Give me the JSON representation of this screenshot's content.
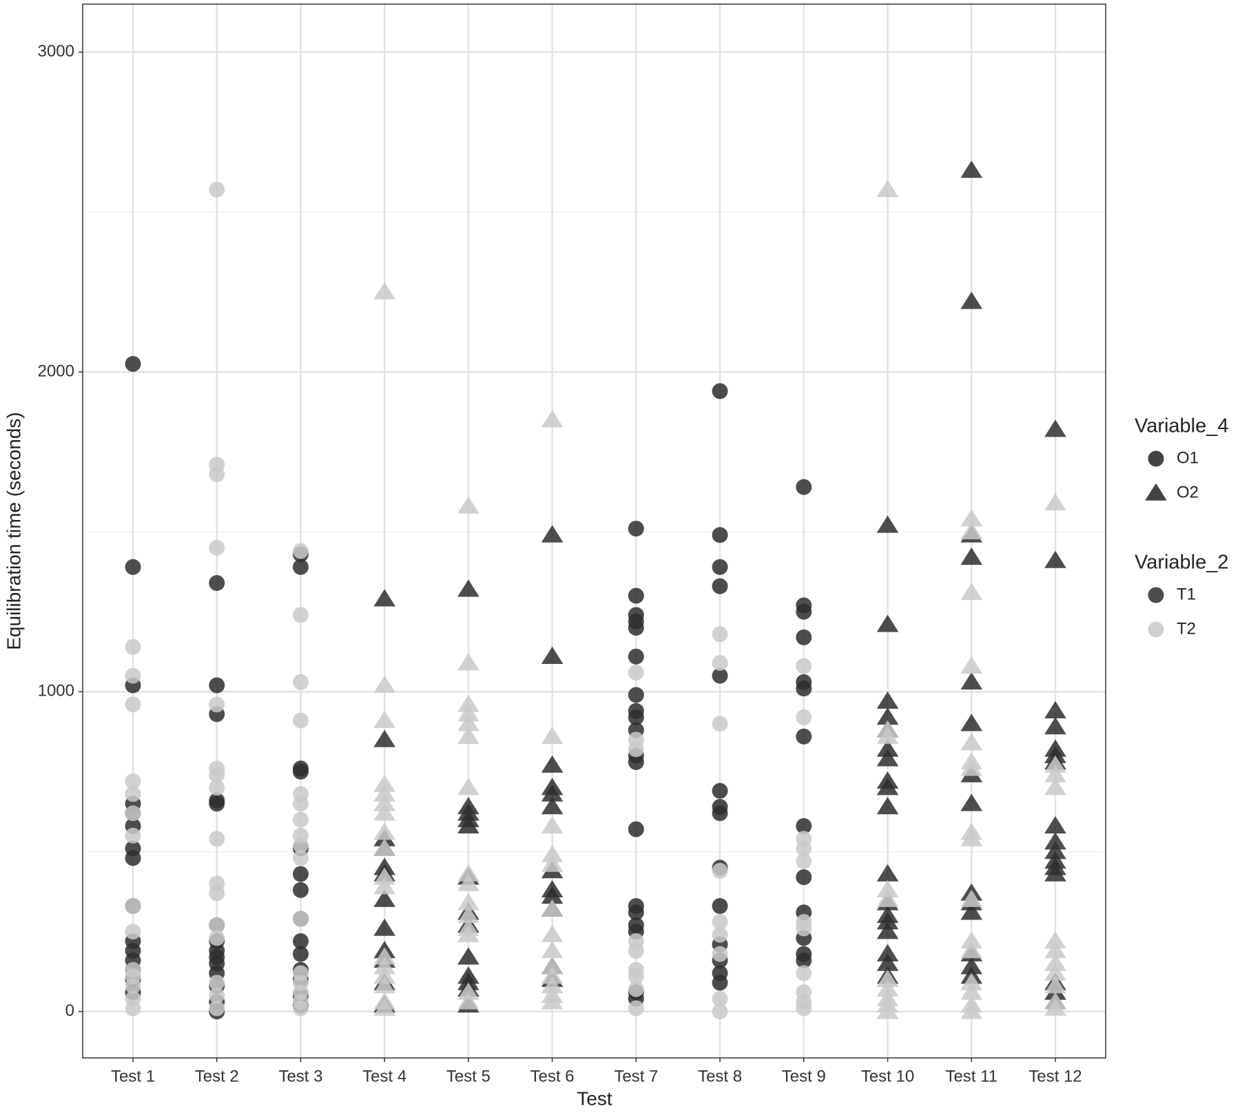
{
  "chart_data": {
    "type": "scatter",
    "x_label": "Test",
    "y_label": "Equilibration time (seconds)",
    "categories": [
      "Test 1",
      "Test 2",
      "Test 3",
      "Test 4",
      "Test 5",
      "Test 6",
      "Test 7",
      "Test 8",
      "Test 9",
      "Test 10",
      "Test 11",
      "Test 12"
    ],
    "ylim": [
      -145,
      3150
    ],
    "yticks": [
      0,
      1000,
      2000,
      3000
    ],
    "yminor": [
      500,
      1500,
      2500
    ],
    "grid": true,
    "legend_position": "right",
    "legends": [
      {
        "title": "Variable_4",
        "entries": [
          {
            "label": "O1",
            "shape": "circle"
          },
          {
            "label": "O2",
            "shape": "triangle"
          }
        ]
      },
      {
        "title": "Variable_2",
        "entries": [
          {
            "label": "T1",
            "color": "#2e2e2e"
          },
          {
            "label": "T2",
            "color": "#c9c9c9"
          }
        ]
      }
    ],
    "series": [
      {
        "shape": "circle",
        "color": "#2e2e2e",
        "values": [
          [
            2025,
            1390,
            1020,
            650,
            620,
            580,
            510,
            480,
            330,
            220,
            190,
            160,
            130,
            100,
            60
          ],
          [
            1340,
            1020,
            930,
            660,
            650,
            270,
            220,
            190,
            170,
            150,
            120,
            80,
            30,
            0
          ],
          [
            1430,
            1390,
            760,
            750,
            510,
            430,
            380,
            290,
            220,
            180,
            130,
            100,
            50,
            20
          ],
          [],
          [],
          [],
          [
            1510,
            1300,
            1240,
            1220,
            1200,
            1110,
            990,
            940,
            920,
            880,
            800,
            780,
            570,
            330,
            310,
            270,
            250,
            60,
            40
          ],
          [
            1940,
            1490,
            1390,
            1330,
            1050,
            690,
            640,
            620,
            450,
            330,
            210,
            160,
            120,
            90
          ],
          [
            1640,
            1270,
            1250,
            1170,
            1030,
            1010,
            860,
            580,
            420,
            310,
            230,
            180,
            160
          ],
          [],
          [],
          []
        ]
      },
      {
        "shape": "circle",
        "color": "#c9c9c9",
        "values": [
          [
            1140,
            1050,
            960,
            720,
            680,
            620,
            550,
            330,
            250,
            130,
            110,
            80,
            40,
            10
          ],
          [
            2570,
            1710,
            1680,
            1450,
            960,
            760,
            740,
            700,
            540,
            400,
            370,
            270,
            230,
            90,
            50,
            10
          ],
          [
            1440,
            1240,
            1030,
            910,
            680,
            650,
            600,
            550,
            520,
            480,
            290,
            120,
            90,
            60,
            30,
            10
          ],
          [],
          [],
          [],
          [
            1060,
            850,
            820,
            220,
            190,
            130,
            110,
            70,
            10
          ],
          [
            1180,
            1090,
            900,
            440,
            280,
            240,
            180,
            40,
            0
          ],
          [
            1080,
            920,
            540,
            510,
            470,
            280,
            260,
            120,
            60,
            30,
            10
          ],
          [],
          [],
          []
        ]
      },
      {
        "shape": "triangle",
        "color": "#2e2e2e",
        "values": [
          [],
          [],
          [],
          [
            1290,
            850,
            540,
            510,
            450,
            430,
            350,
            260,
            190,
            160,
            90,
            20
          ],
          [
            1320,
            640,
            620,
            600,
            580,
            420,
            310,
            270,
            170,
            110,
            90,
            70,
            20
          ],
          [
            1490,
            1110,
            770,
            700,
            680,
            640,
            440,
            380,
            360,
            320,
            140,
            100
          ],
          [],
          [],
          [],
          [
            1520,
            1210,
            970,
            920,
            880,
            820,
            790,
            720,
            700,
            640,
            430,
            340,
            300,
            280,
            250,
            180,
            150,
            110
          ],
          [
            2630,
            2220,
            1490,
            1420,
            1030,
            900,
            740,
            650,
            370,
            340,
            310,
            180,
            140,
            110
          ],
          [
            1820,
            1410,
            940,
            890,
            820,
            800,
            780,
            580,
            530,
            500,
            470,
            450,
            430,
            90,
            60,
            30
          ]
        ]
      },
      {
        "shape": "triangle",
        "color": "#c9c9c9",
        "values": [
          [],
          [],
          [],
          [
            2250,
            1020,
            910,
            710,
            680,
            650,
            620,
            560,
            510,
            420,
            390,
            170,
            140,
            110,
            80,
            30,
            10
          ],
          [
            1580,
            1090,
            960,
            930,
            900,
            860,
            700,
            430,
            400,
            340,
            300,
            260,
            240,
            60,
            30
          ],
          [
            1850,
            860,
            580,
            490,
            460,
            320,
            240,
            190,
            140,
            110,
            80,
            50,
            30
          ],
          [],
          [],
          [],
          [
            2570,
            880,
            860,
            380,
            350,
            100,
            70,
            40,
            20,
            0
          ],
          [
            1540,
            1500,
            1310,
            1080,
            840,
            780,
            760,
            560,
            540,
            350,
            220,
            190,
            90,
            60,
            20,
            0
          ],
          [
            1590,
            770,
            740,
            700,
            220,
            190,
            150,
            120,
            80,
            30,
            10
          ]
        ]
      }
    ]
  }
}
